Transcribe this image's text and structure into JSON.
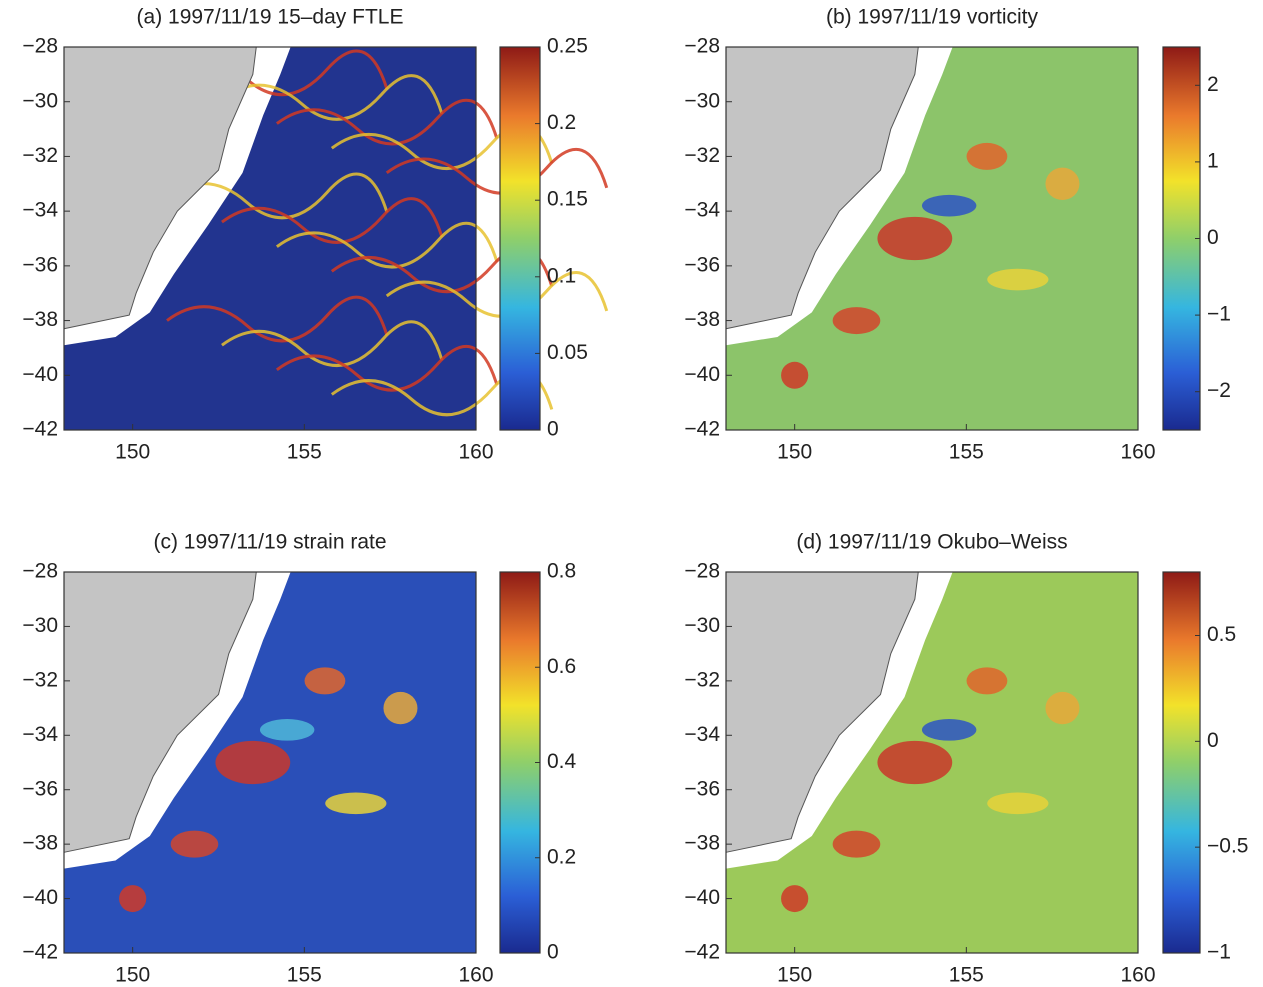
{
  "chart_data": [
    {
      "type": "heatmap",
      "title": "(a) 1997/11/19 15–day FTLE",
      "xlim": [
        148,
        160
      ],
      "xticks": [
        150,
        155,
        160
      ],
      "ylim": [
        -42,
        -28
      ],
      "yticks": [
        {
          "value": -28,
          "label": "−28"
        },
        {
          "value": -30,
          "label": "−30"
        },
        {
          "value": -32,
          "label": "−32"
        },
        {
          "value": -34,
          "label": "−34"
        },
        {
          "value": -36,
          "label": "−36"
        },
        {
          "value": -38,
          "label": "−38"
        },
        {
          "value": -40,
          "label": "−40"
        },
        {
          "value": -42,
          "label": "−42"
        }
      ],
      "clim": [
        0,
        0.25
      ],
      "cticks": [
        0,
        0.05,
        0.1,
        0.15,
        0.2,
        0.25
      ]
    },
    {
      "type": "heatmap",
      "title": "(b) 1997/11/19 vorticity",
      "xlim": [
        148,
        160
      ],
      "xticks": [
        150,
        155,
        160
      ],
      "ylim": [
        -42,
        -28
      ],
      "yticks": [
        {
          "value": -28,
          "label": "−28"
        },
        {
          "value": -30,
          "label": "−30"
        },
        {
          "value": -32,
          "label": "−32"
        },
        {
          "value": -34,
          "label": "−34"
        },
        {
          "value": -36,
          "label": "−36"
        },
        {
          "value": -38,
          "label": "−38"
        },
        {
          "value": -40,
          "label": "−40"
        },
        {
          "value": -42,
          "label": "−42"
        }
      ],
      "clim": [
        -2.5,
        2.5
      ],
      "cticks": [
        {
          "value": -2,
          "label": "−2"
        },
        {
          "value": -1,
          "label": "−1"
        },
        0,
        1,
        2
      ]
    },
    {
      "type": "heatmap",
      "title": "(c) 1997/11/19 strain rate",
      "xlim": [
        148,
        160
      ],
      "xticks": [
        150,
        155,
        160
      ],
      "ylim": [
        -42,
        -28
      ],
      "yticks": [
        {
          "value": -28,
          "label": "−28"
        },
        {
          "value": -30,
          "label": "−30"
        },
        {
          "value": -32,
          "label": "−32"
        },
        {
          "value": -34,
          "label": "−34"
        },
        {
          "value": -36,
          "label": "−36"
        },
        {
          "value": -38,
          "label": "−38"
        },
        {
          "value": -40,
          "label": "−40"
        },
        {
          "value": -42,
          "label": "−42"
        }
      ],
      "clim": [
        0,
        0.8
      ],
      "cticks": [
        0,
        0.2,
        0.4,
        0.6,
        0.8
      ]
    },
    {
      "type": "heatmap",
      "title": "(d) 1997/11/19 Okubo–Weiss",
      "xlim": [
        148,
        160
      ],
      "xticks": [
        150,
        155,
        160
      ],
      "ylim": [
        -42,
        -28
      ],
      "yticks": [
        {
          "value": -28,
          "label": "−28"
        },
        {
          "value": -30,
          "label": "−30"
        },
        {
          "value": -32,
          "label": "−32"
        },
        {
          "value": -34,
          "label": "−34"
        },
        {
          "value": -36,
          "label": "−36"
        },
        {
          "value": -38,
          "label": "−38"
        },
        {
          "value": -40,
          "label": "−40"
        },
        {
          "value": -42,
          "label": "−42"
        }
      ],
      "clim": [
        -1,
        0.8
      ],
      "cticks": [
        {
          "value": -1,
          "label": "−1"
        },
        {
          "value": -0.5,
          "label": "−0.5"
        },
        0,
        0.5
      ]
    }
  ]
}
